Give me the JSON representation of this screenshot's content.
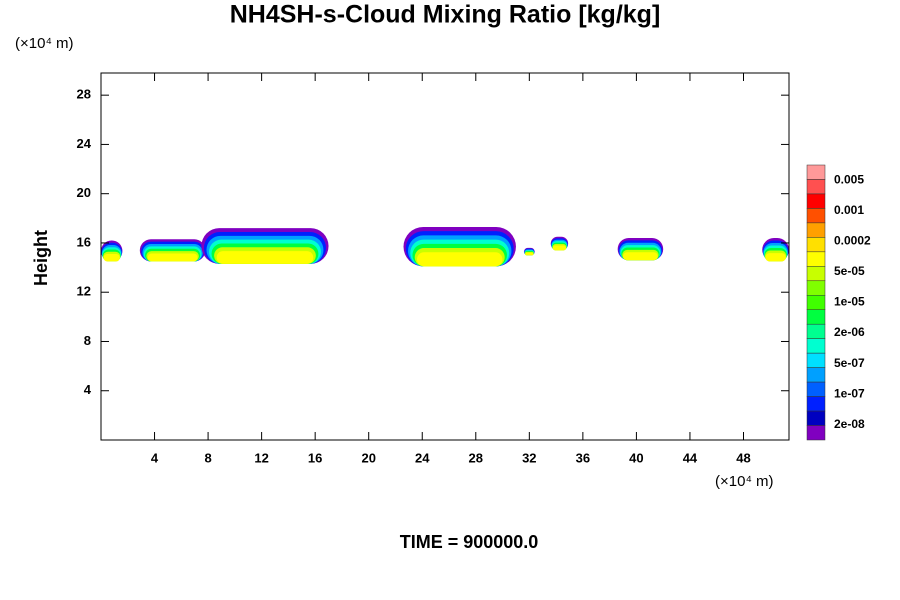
{
  "chart_data": {
    "type": "contour",
    "title": "NH4SH-s-Cloud Mixing Ratio [kg/kg]",
    "y_unit": "(×10⁴ m)",
    "x_unit": "(×10⁴ m)",
    "ylabel": "Height",
    "footer": "TIME = 900000.0",
    "xlim": [
      0,
      51.4
    ],
    "ylim": [
      0,
      29.8
    ],
    "xticks": [
      4,
      8,
      12,
      16,
      20,
      24,
      28,
      32,
      36,
      40,
      44,
      48
    ],
    "yticks": [
      4,
      8,
      12,
      16,
      20,
      24,
      28
    ],
    "clouds": [
      {
        "x0": 0,
        "x1": 1.6,
        "base": 14.5,
        "top": 16.2
      },
      {
        "x0": 2.9,
        "x1": 7.8,
        "base": 14.5,
        "top": 16.3
      },
      {
        "x0": 7.5,
        "x1": 17.0,
        "base": 14.3,
        "top": 17.2
      },
      {
        "x0": 22.6,
        "x1": 31.0,
        "base": 14.1,
        "top": 17.3
      },
      {
        "x0": 31.6,
        "x1": 32.4,
        "base": 15.0,
        "top": 15.6
      },
      {
        "x0": 33.6,
        "x1": 34.9,
        "base": 15.4,
        "top": 16.5
      },
      {
        "x0": 38.6,
        "x1": 42.0,
        "base": 14.6,
        "top": 16.4
      },
      {
        "x0": 49.4,
        "x1": 51.4,
        "base": 14.5,
        "top": 16.4
      }
    ],
    "colorbar": {
      "colors": [
        "#ff9999",
        "#ff5050",
        "#ff0000",
        "#ff5000",
        "#ffa000",
        "#ffe000",
        "#ffff00",
        "#c8ff00",
        "#80ff00",
        "#40ff00",
        "#00ff40",
        "#00ff90",
        "#00ffd0",
        "#00e0ff",
        "#00a0ff",
        "#0060ff",
        "#0020ff",
        "#0000c0",
        "#8000c0"
      ],
      "labels": [
        "0.005",
        "0.001",
        "0.0002",
        "5e-05",
        "1e-05",
        "2e-06",
        "5e-07",
        "1e-07",
        "2e-08"
      ]
    }
  }
}
